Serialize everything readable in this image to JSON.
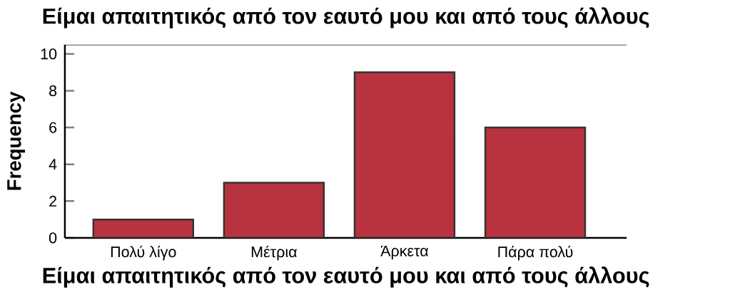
{
  "chart_data": {
    "type": "bar",
    "title": "Είμαι απαιτητικός από τον εαυτό μου και από τους άλλους",
    "xlabel": "Είμαι απαιτητικός από τον εαυτό μου και από τους άλλους",
    "ylabel": "Frequency",
    "categories": [
      "Πολύ λίγο",
      "Μέτρια",
      "Άρκετα",
      "Πάρα πολύ"
    ],
    "values": [
      1,
      3,
      9,
      6
    ],
    "color": "#b8323f",
    "ylim": [
      0,
      10.5
    ],
    "yticks": [
      0,
      2,
      4,
      6,
      8,
      10
    ],
    "grid": false
  }
}
